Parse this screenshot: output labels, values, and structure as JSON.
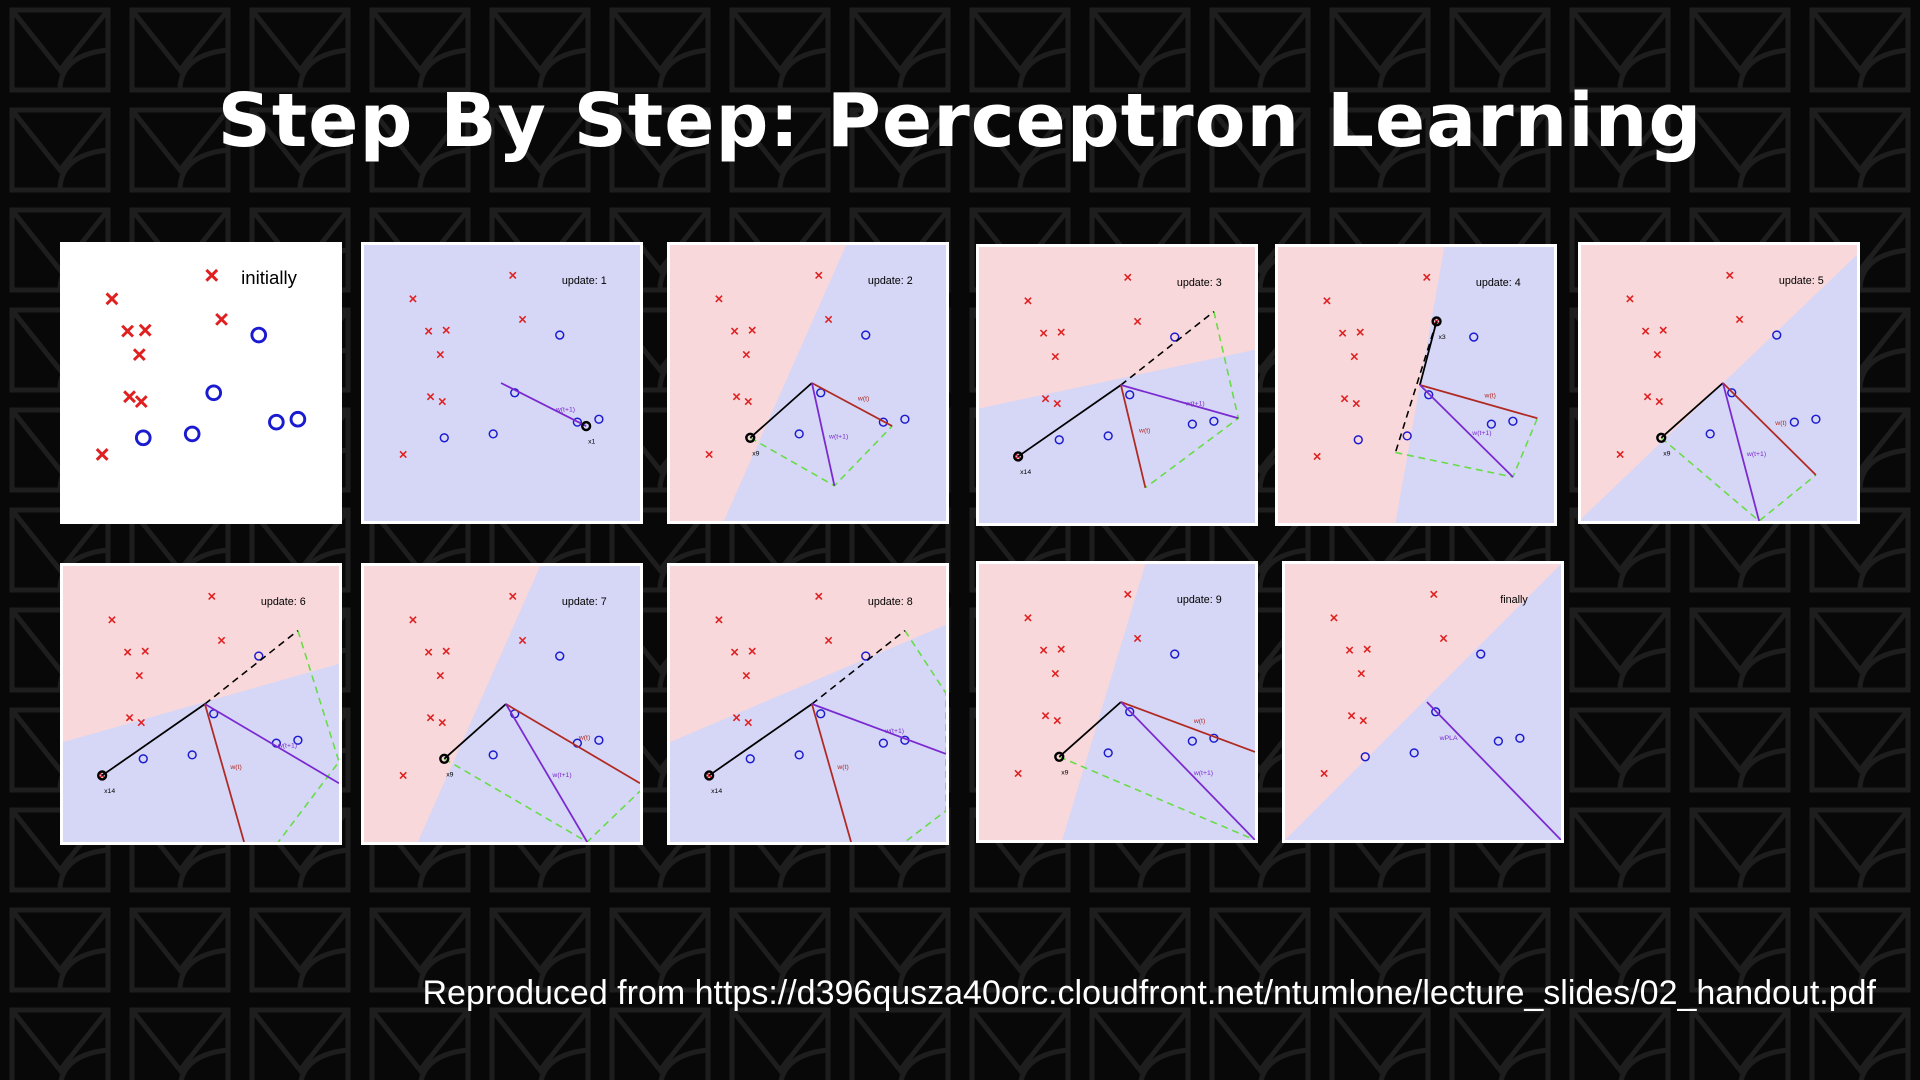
{
  "title": "Step By Step: Perceptron Learning",
  "credit": "Reproduced from https://d396qusza40orc.cloudfront.net/ntumlone/lecture_slides/02_handout.pdf",
  "colors": {
    "background": "#080808",
    "red_region": "#f8d8da",
    "blue_region": "#d6d6f6",
    "x_marker": "#e02020",
    "o_marker": "#1a1ad0",
    "w_t": "#b02a22",
    "w_t1": "#7a2ad0",
    "y_x": "#66dd44"
  },
  "panels": [
    {
      "label": "initially"
    },
    {
      "label": "update: 1",
      "point_label": "x1",
      "vector_labels": [
        "w(t+1)"
      ]
    },
    {
      "label": "update: 2",
      "point_label": "x9",
      "vector_labels": [
        "w(t)",
        "w(t+1)"
      ]
    },
    {
      "label": "update: 3",
      "point_label": "x14",
      "vector_labels": [
        "w(t)",
        "w(t+1)"
      ]
    },
    {
      "label": "update: 4",
      "point_label": "x3",
      "vector_labels": [
        "w(t)",
        "w(t+1)"
      ]
    },
    {
      "label": "update: 5",
      "point_label": "x9",
      "vector_labels": [
        "w(t)",
        "w(t+1)"
      ]
    },
    {
      "label": "update: 6",
      "point_label": "x14",
      "vector_labels": [
        "w(t)",
        "w(t+1)"
      ]
    },
    {
      "label": "update: 7",
      "point_label": "x9",
      "vector_labels": [
        "w(t)",
        "w(t+1)"
      ]
    },
    {
      "label": "update: 8",
      "point_label": "x14",
      "vector_labels": [
        "w(t)",
        "w(t+1)"
      ]
    },
    {
      "label": "update: 9",
      "point_label": "x9",
      "vector_labels": [
        "w(t)",
        "w(t+1)"
      ]
    },
    {
      "label": "finally",
      "vector_labels": [
        "wPLA"
      ]
    }
  ]
}
